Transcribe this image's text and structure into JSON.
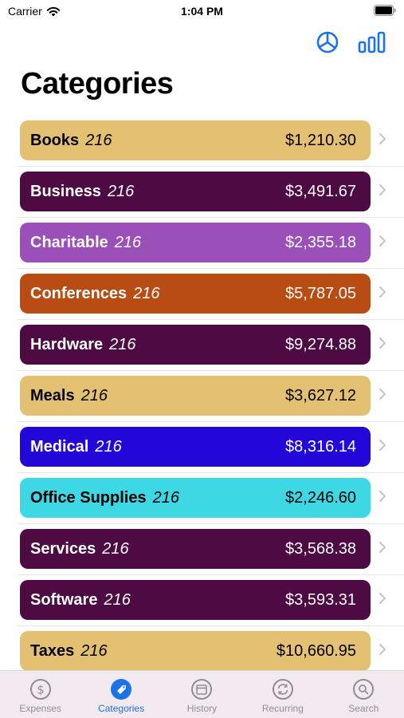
{
  "status": {
    "carrier": "Carrier",
    "time": "1:04 PM"
  },
  "nav": {
    "actions": [
      {
        "icon": "pie-chart-icon"
      },
      {
        "icon": "bar-chart-icon"
      }
    ]
  },
  "title": "Categories",
  "colors": {
    "accent": "#1a73e8",
    "tab_inactive": "#8e8e93"
  },
  "categories": [
    {
      "name": "Books",
      "count": "216",
      "amount": "$1,210.30",
      "color": "#e4c073",
      "text_color": "#000000"
    },
    {
      "name": "Business",
      "count": "216",
      "amount": "$3,491.67",
      "color": "#4e0a43",
      "text_color": "#ffffff"
    },
    {
      "name": "Charitable",
      "count": "216",
      "amount": "$2,355.18",
      "color": "#9b4fb8",
      "text_color": "#ffffff"
    },
    {
      "name": "Conferences",
      "count": "216",
      "amount": "$5,787.05",
      "color": "#b84c12",
      "text_color": "#ffffff"
    },
    {
      "name": "Hardware",
      "count": "216",
      "amount": "$9,274.88",
      "color": "#4e0a43",
      "text_color": "#ffffff"
    },
    {
      "name": "Meals",
      "count": "216",
      "amount": "$3,627.12",
      "color": "#e4c073",
      "text_color": "#000000"
    },
    {
      "name": "Medical",
      "count": "216",
      "amount": "$8,316.14",
      "color": "#2307d8",
      "text_color": "#ffffff"
    },
    {
      "name": "Office Supplies",
      "count": "216",
      "amount": "$2,246.60",
      "color": "#3ed7e4",
      "text_color": "#000000"
    },
    {
      "name": "Services",
      "count": "216",
      "amount": "$3,568.38",
      "color": "#4e0a43",
      "text_color": "#ffffff"
    },
    {
      "name": "Software",
      "count": "216",
      "amount": "$3,593.31",
      "color": "#4e0a43",
      "text_color": "#ffffff"
    },
    {
      "name": "Taxes",
      "count": "216",
      "amount": "$10,660.95",
      "color": "#e4c073",
      "text_color": "#000000"
    }
  ],
  "tabs": [
    {
      "label": "Expenses",
      "icon": "dollar-circle-icon",
      "active": false
    },
    {
      "label": "Categories",
      "icon": "tag-circle-icon",
      "active": true
    },
    {
      "label": "History",
      "icon": "calendar-circle-icon",
      "active": false
    },
    {
      "label": "Recurring",
      "icon": "repeat-circle-icon",
      "active": false
    },
    {
      "label": "Search",
      "icon": "search-circle-icon",
      "active": false
    }
  ]
}
